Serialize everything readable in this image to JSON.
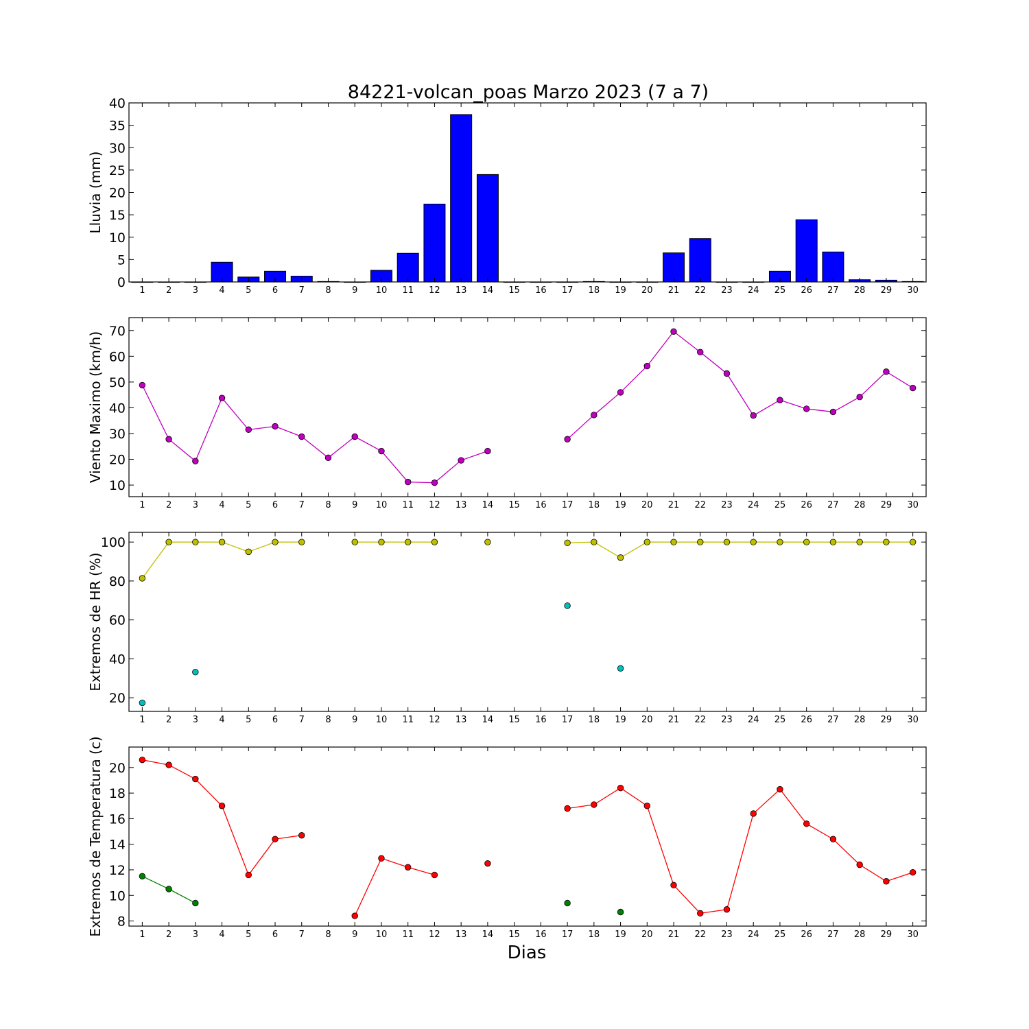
{
  "figure": {
    "title": "84221-volcan_poas Marzo 2023  (7 a 7)",
    "xlabel": "Dias"
  },
  "colors": {
    "rain_bar": "#0000ff",
    "wind": "#bf00bf",
    "hr_max": "#bfbf00",
    "hr_min": "#00bfbf",
    "temp_max": "#ff0000",
    "temp_min": "#008000"
  },
  "chart_data": [
    {
      "type": "bar",
      "ylabel": "Lluvia (mm)",
      "ylim": [
        0,
        40
      ],
      "yticks": [
        0,
        5,
        10,
        15,
        20,
        25,
        30,
        35,
        40
      ],
      "categories": [
        "1",
        "2",
        "3",
        "4",
        "5",
        "6",
        "7",
        "8",
        "9",
        "10",
        "11",
        "12",
        "13",
        "14",
        "15",
        "16",
        "17",
        "18",
        "19",
        "20",
        "21",
        "22",
        "23",
        "24",
        "25",
        "26",
        "27",
        "28",
        "29",
        "30"
      ],
      "values": [
        0,
        0,
        0,
        4.4,
        1.1,
        2.4,
        1.3,
        0.1,
        0,
        2.6,
        6.4,
        17.4,
        37.4,
        24.0,
        0,
        0,
        0,
        0.1,
        0,
        0,
        6.5,
        9.7,
        0,
        0,
        2.4,
        13.9,
        6.7,
        0.5,
        0.4,
        0.1
      ],
      "color": "#0000ff",
      "grid": false
    },
    {
      "type": "line",
      "ylabel": "Viento Maximo (km/h)",
      "ylim": [
        5.5,
        75
      ],
      "yticks": [
        10,
        20,
        30,
        40,
        50,
        60,
        70
      ],
      "categories": [
        "1",
        "2",
        "3",
        "4",
        "5",
        "6",
        "7",
        "8",
        "9",
        "10",
        "11",
        "12",
        "13",
        "14",
        "15",
        "16",
        "17",
        "18",
        "19",
        "20",
        "21",
        "22",
        "23",
        "24",
        "25",
        "26",
        "27",
        "28",
        "29",
        "30"
      ],
      "series": [
        {
          "color": "#bf00bf",
          "values": [
            48.8,
            27.8,
            19.3,
            43.8,
            31.5,
            32.8,
            28.8,
            20.6,
            28.8,
            23.2,
            11.2,
            10.9,
            19.6,
            23.2,
            null,
            null,
            27.8,
            37.2,
            46.0,
            56.2,
            69.6,
            61.6,
            53.3,
            37.0,
            43.0,
            39.6,
            38.4,
            44.2,
            54.0,
            47.7
          ]
        }
      ],
      "grid": false
    },
    {
      "type": "line",
      "ylabel": "Extremos de HR (%)",
      "ylim": [
        13,
        105
      ],
      "yticks": [
        20,
        40,
        60,
        80,
        100
      ],
      "categories": [
        "1",
        "2",
        "3",
        "4",
        "5",
        "6",
        "7",
        "8",
        "9",
        "10",
        "11",
        "12",
        "13",
        "14",
        "15",
        "16",
        "17",
        "18",
        "19",
        "20",
        "21",
        "22",
        "23",
        "24",
        "25",
        "26",
        "27",
        "28",
        "29",
        "30"
      ],
      "series": [
        {
          "color": "#bfbf00",
          "values": [
            81.4,
            100,
            100,
            100,
            95,
            100,
            100,
            null,
            100,
            100,
            100,
            100,
            null,
            100,
            null,
            null,
            99.6,
            100,
            92,
            100,
            100,
            100,
            100,
            100,
            100,
            100,
            100,
            100,
            100,
            100
          ]
        },
        {
          "color": "#00bfbf",
          "values": [
            17.4,
            null,
            33.2,
            null,
            null,
            null,
            null,
            null,
            null,
            null,
            null,
            null,
            null,
            null,
            null,
            null,
            67.3,
            null,
            35.1,
            null,
            null,
            null,
            null,
            null,
            null,
            null,
            null,
            null,
            null,
            null
          ]
        }
      ],
      "grid": false
    },
    {
      "type": "line",
      "ylabel": "Extremos de Temperatura (c)",
      "ylim": [
        7.6,
        21.6
      ],
      "yticks": [
        8,
        10,
        12,
        14,
        16,
        18,
        20
      ],
      "categories": [
        "1",
        "2",
        "3",
        "4",
        "5",
        "6",
        "7",
        "8",
        "9",
        "10",
        "11",
        "12",
        "13",
        "14",
        "15",
        "16",
        "17",
        "18",
        "19",
        "20",
        "21",
        "22",
        "23",
        "24",
        "25",
        "26",
        "27",
        "28",
        "29",
        "30"
      ],
      "series": [
        {
          "color": "#ff0000",
          "values": [
            20.6,
            20.2,
            19.1,
            17.0,
            11.6,
            14.4,
            14.7,
            null,
            8.4,
            12.9,
            12.2,
            11.6,
            null,
            12.5,
            null,
            null,
            16.8,
            17.1,
            18.4,
            17.0,
            10.8,
            8.6,
            8.9,
            16.4,
            18.3,
            15.6,
            14.4,
            12.4,
            11.1,
            11.8
          ]
        },
        {
          "color": "#008000",
          "values": [
            11.5,
            10.5,
            9.4,
            null,
            null,
            null,
            null,
            null,
            null,
            null,
            null,
            null,
            null,
            null,
            null,
            null,
            9.4,
            null,
            8.7,
            null,
            null,
            null,
            null,
            null,
            null,
            null,
            null,
            null,
            null,
            null
          ]
        }
      ],
      "grid": false
    }
  ]
}
